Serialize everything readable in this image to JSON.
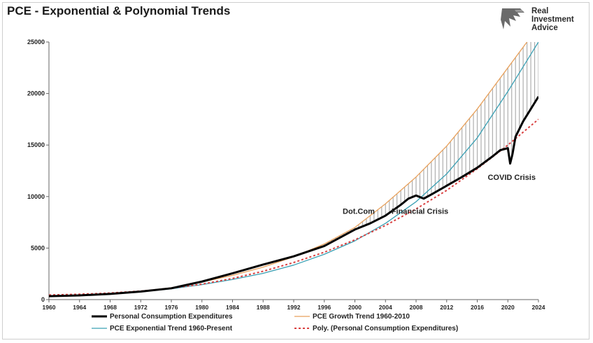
{
  "chart_data": {
    "type": "line",
    "title": "PCE - Exponential & Polynomial Trends",
    "xlabel": "",
    "ylabel": "",
    "xlim": [
      1960,
      2024
    ],
    "ylim": [
      0,
      25000
    ],
    "x_ticks": [
      "1960",
      "1964",
      "1968",
      "1972",
      "1976",
      "1980",
      "1984",
      "1988",
      "1992",
      "1996",
      "2000",
      "2004",
      "2008",
      "2012",
      "2016",
      "2020",
      "2024"
    ],
    "y_ticks": [
      "0",
      "5000",
      "10000",
      "15000",
      "20000",
      "25000"
    ],
    "grid": false,
    "legend_position": "bottom",
    "series": [
      {
        "name": "Personal Consumption Expenditures",
        "color": "#000000",
        "x": [
          1960,
          1964,
          1968,
          1972,
          1976,
          1980,
          1984,
          1988,
          1992,
          1996,
          2000,
          2002,
          2004,
          2006,
          2007,
          2008,
          2009,
          2010,
          2012,
          2014,
          2016,
          2018,
          2019,
          2020.0,
          2020.3,
          2020.6,
          2021,
          2022,
          2023,
          2024
        ],
        "y": [
          330,
          410,
          550,
          780,
          1100,
          1750,
          2550,
          3400,
          4200,
          5200,
          6800,
          7400,
          8150,
          9200,
          9800,
          10100,
          9800,
          10200,
          11050,
          11900,
          12800,
          13900,
          14500,
          14700,
          13200,
          14100,
          15800,
          17300,
          18500,
          19700
        ]
      },
      {
        "name": "PCE Growth Trend 1960-2010",
        "color": "#e8a15c",
        "x": [
          1960,
          1964,
          1968,
          1972,
          1976,
          1980,
          1984,
          1988,
          1992,
          1996,
          2000,
          2004,
          2008,
          2012,
          2016,
          2020,
          2022.5
        ],
        "y": [
          330,
          430,
          580,
          800,
          1150,
          1700,
          2350,
          3150,
          4150,
          5400,
          7000,
          9300,
          11900,
          14900,
          18500,
          22500,
          25000
        ]
      },
      {
        "name": "PCE Exponential Trend 1960-Present",
        "color": "#3aa0b4",
        "x": [
          1960,
          1964,
          1968,
          1972,
          1976,
          1980,
          1984,
          1988,
          1992,
          1996,
          2000,
          2004,
          2008,
          2012,
          2016,
          2020,
          2024
        ],
        "y": [
          330,
          420,
          560,
          760,
          1050,
          1450,
          1950,
          2550,
          3350,
          4400,
          5700,
          7400,
          9500,
          12200,
          15700,
          20200,
          25000
        ]
      },
      {
        "name": "Poly. (Personal Consumption Expenditures)",
        "color": "#d94040",
        "x": [
          1960,
          1964,
          1968,
          1972,
          1976,
          1980,
          1984,
          1988,
          1992,
          1996,
          2000,
          2004,
          2008,
          2012,
          2016,
          2020,
          2024
        ],
        "y": [
          450,
          520,
          640,
          830,
          1100,
          1500,
          2050,
          2750,
          3600,
          4600,
          5800,
          7200,
          8800,
          10600,
          12700,
          15000,
          17500
        ]
      }
    ],
    "annotations": [
      {
        "text": "Dot.Com",
        "x": 2000.5,
        "y": 8600
      },
      {
        "text": "Financial Crisis",
        "x": 2008.5,
        "y": 8600
      },
      {
        "text": "COVID Crisis",
        "x": 2020.5,
        "y": 11900
      }
    ]
  },
  "brand": {
    "name_line1": "Real",
    "name_line2": "Investment",
    "name_line3": "Advice"
  }
}
